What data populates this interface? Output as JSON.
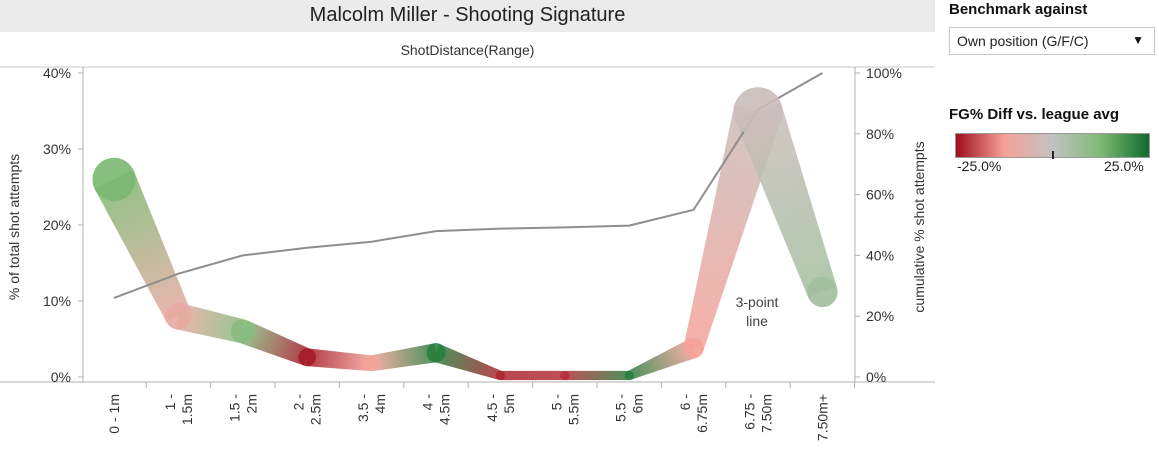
{
  "chart_data": {
    "type": "line",
    "title": "Malcolm Miller - Shooting Signature",
    "subtitle": "ShotDistance(Range)",
    "ylabel": "% of total shot attempts",
    "y2label": "cumulative % shot attempts",
    "categories": [
      "0 - 1m",
      "1 - 1.5m",
      "1.5 - 2m",
      "2 - 2.5m",
      "3.5 - 4m",
      "4 - 4.5m",
      "4.5 - 5m",
      "5 - 5.5m",
      "5.5 - 6m",
      "6 - 6.75m",
      "6.75 - 7.50m",
      "7.50m+"
    ],
    "category_lines": [
      [
        "0 - 1m"
      ],
      [
        "1 -",
        "1.5m"
      ],
      [
        "1.5 -",
        "2m"
      ],
      [
        "2 -",
        "2.5m"
      ],
      [
        "3.5 -",
        "4m"
      ],
      [
        "4 -",
        "4.5m"
      ],
      [
        "4.5 -",
        "5m"
      ],
      [
        "5 -",
        "5.5m"
      ],
      [
        "5.5 -",
        "6m"
      ],
      [
        "6 -",
        "6.75m"
      ],
      [
        "6.75 -",
        "7.50m"
      ],
      [
        "7.50m+"
      ]
    ],
    "ylim": [
      0,
      40
    ],
    "y2lim": [
      0,
      100
    ],
    "yticks": [
      0,
      10,
      20,
      30,
      40
    ],
    "yticklabels": [
      "0%",
      "10%",
      "20%",
      "30%",
      "40%"
    ],
    "y2ticks": [
      0,
      20,
      40,
      60,
      80,
      100
    ],
    "y2ticklabels": [
      "0%",
      "20%",
      "40%",
      "60%",
      "80%",
      "100%"
    ],
    "series": [
      {
        "values": [
          26.0,
          8.0,
          6.0,
          2.6,
          1.8,
          3.2,
          0.2,
          0.2,
          0.2,
          3.8,
          34.9,
          11.2
        ],
        "fg_diff_pct": [
          13,
          -9,
          11,
          -24,
          -12,
          22,
          -23,
          -22,
          22,
          -12,
          -2,
          6
        ]
      },
      {
        "axis": "right",
        "values": [
          26,
          34,
          40,
          42.5,
          44.5,
          48,
          48.8,
          49.2,
          49.8,
          55,
          88,
          100
        ]
      }
    ],
    "annotation": [
      "3-point",
      "line"
    ],
    "colors": {
      "negative": "#9e0f1e",
      "mid_neg": "#f6a196",
      "neutral": "#c2c2c2",
      "mid_pos": "#7fba75",
      "positive": "#0f6b2d",
      "cumulative_line": "#8e8e8e"
    },
    "grid": false
  },
  "sidebar": {
    "benchmark_title": "Benchmark against",
    "benchmark_value": "Own position (G/F/C)",
    "legend_title": "FG% Diff vs. league avg",
    "legend_min": "-25.0%",
    "legend_max": "25.0%"
  }
}
